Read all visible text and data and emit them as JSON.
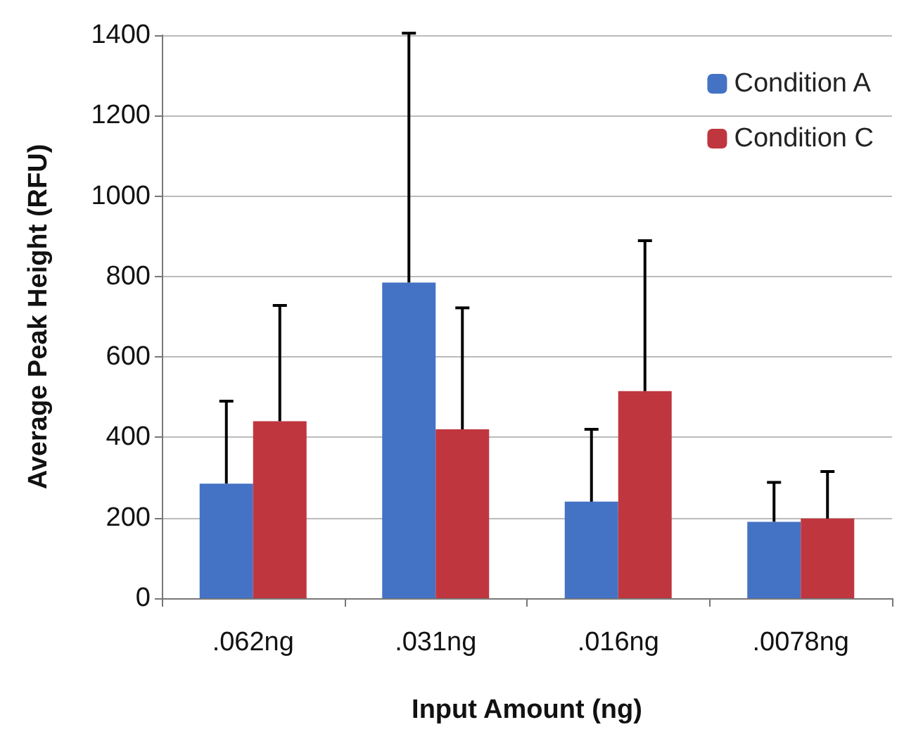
{
  "chart_data": {
    "type": "bar",
    "xlabel": "Input Amount (ng)",
    "ylabel": "Average Peak Height (RFU)",
    "categories": [
      ".062ng",
      ".031ng",
      ".016ng",
      ".0078ng"
    ],
    "series": [
      {
        "name": "Condition A",
        "color": "#4472c4",
        "values": [
          285,
          785,
          240,
          190
        ],
        "errors": [
          [
            285,
            490
          ],
          [
            785,
            1405
          ],
          [
            240,
            420
          ],
          [
            190,
            288
          ]
        ]
      },
      {
        "name": "Condition C",
        "color": "#c0363f",
        "values": [
          440,
          420,
          515,
          198
        ],
        "errors": [
          [
            440,
            728
          ],
          [
            420,
            722
          ],
          [
            515,
            889
          ],
          [
            198,
            315
          ]
        ]
      }
    ],
    "ylim": [
      0,
      1400
    ],
    "yticks": [
      0,
      200,
      400,
      600,
      800,
      1000,
      1200,
      1400
    ],
    "grid": "y",
    "legend": "top right"
  }
}
